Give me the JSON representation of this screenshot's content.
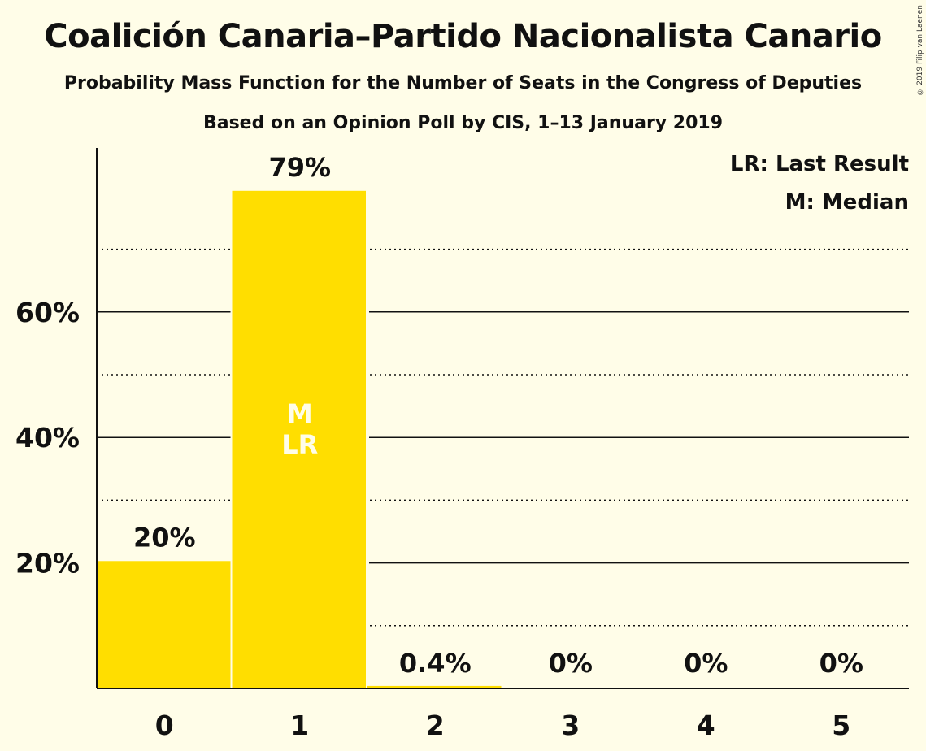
{
  "header": {
    "title": "Coalición Canaria–Partido Nacionalista Canario",
    "subtitle": "Probability Mass Function for the Number of Seats in the Congress of Deputies",
    "subtitle2": "Based on an Opinion Poll by CIS, 1–13 January 2019",
    "copyright": "© 2019 Filip van Laenen"
  },
  "legend": {
    "lr": "LR: Last Result",
    "m": "M: Median",
    "placement": "top-right"
  },
  "colors": {
    "bar": "#FFDE00",
    "background": "#FFFDE8",
    "bar_marker_text": "#FFFDE8"
  },
  "chart_data": {
    "type": "bar",
    "categories": [
      "0",
      "1",
      "2",
      "3",
      "4",
      "5"
    ],
    "values": [
      20.3,
      79.3,
      0.4,
      0,
      0,
      0
    ],
    "data_labels": [
      "20%",
      "79%",
      "0.4%",
      "0%",
      "0%",
      "0%"
    ],
    "y_ticks": [
      20,
      40,
      60
    ],
    "y_tick_labels": [
      "20%",
      "40%",
      "60%"
    ],
    "y_dotted_gridlines": [
      10,
      30,
      50,
      70
    ],
    "ylim": [
      0,
      86
    ],
    "grid": true,
    "bar_markers": [
      {
        "category": "1",
        "lines": [
          "M",
          "LR"
        ]
      }
    ]
  }
}
